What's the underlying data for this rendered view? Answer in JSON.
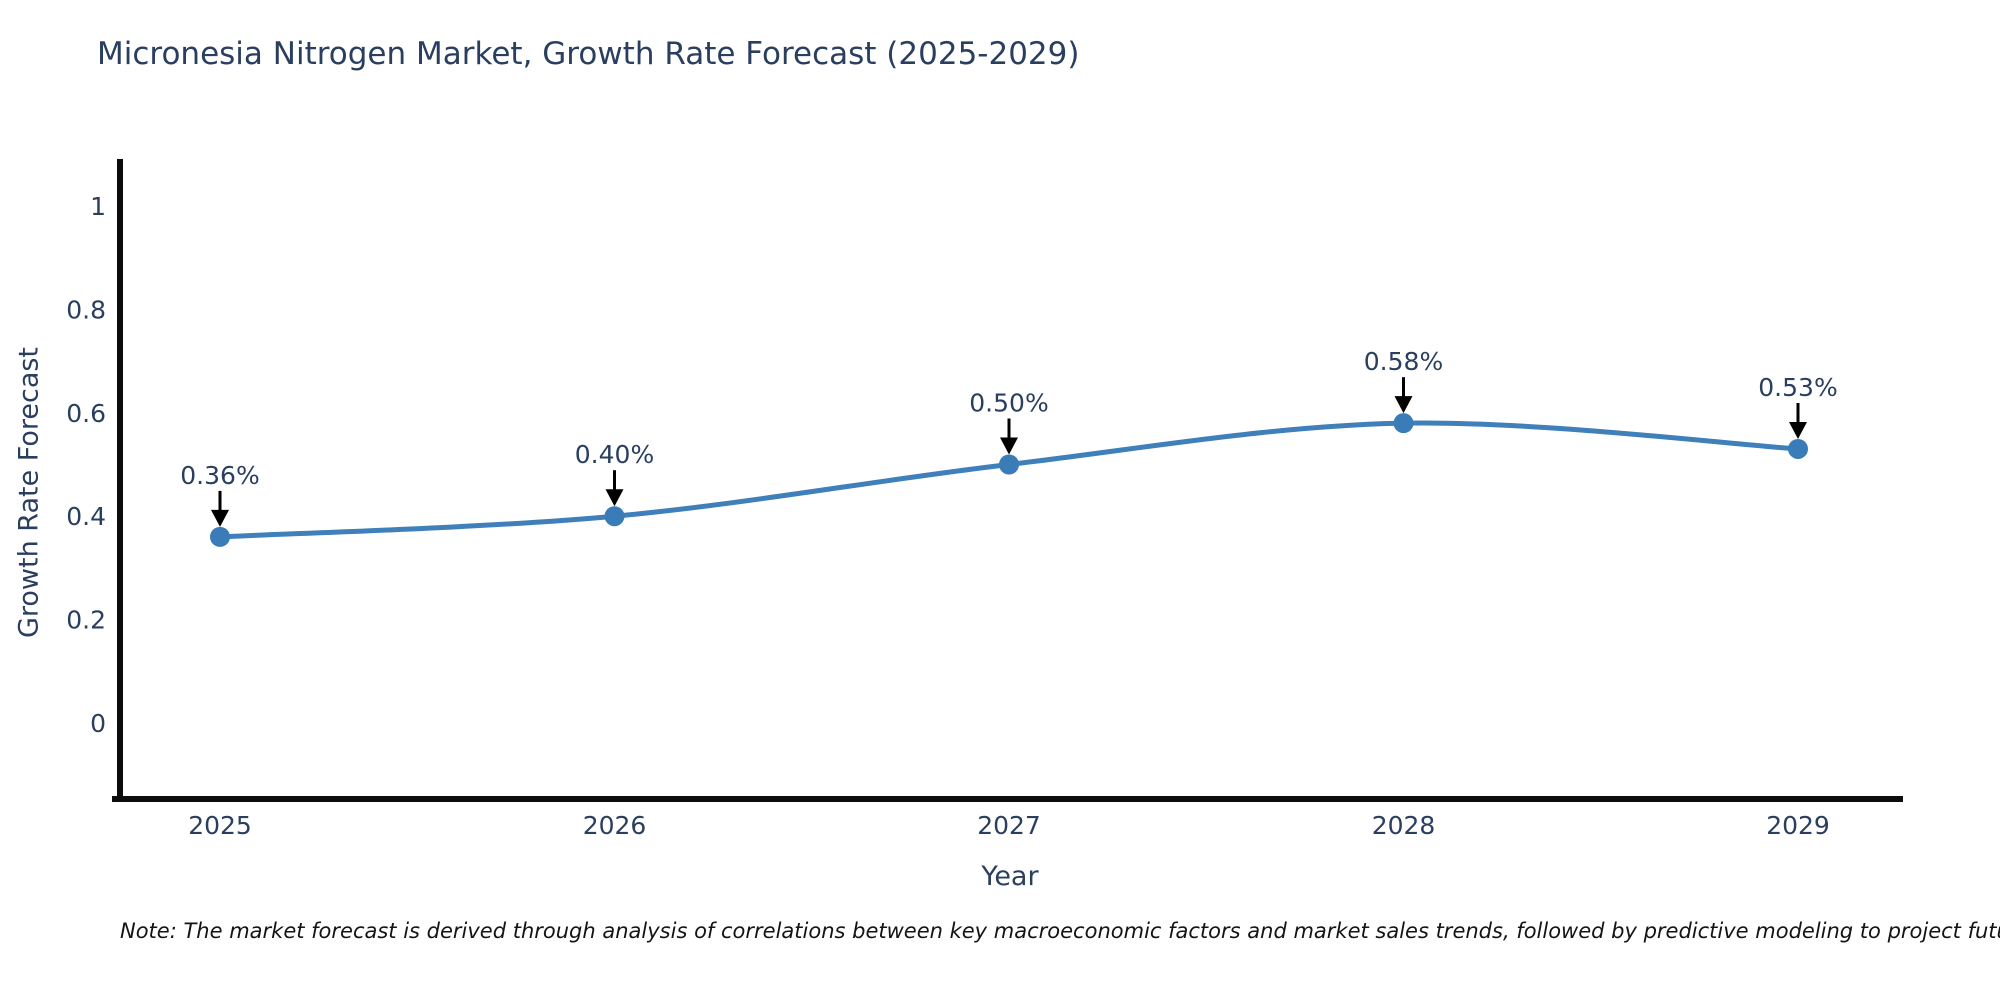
{
  "chart_data": {
    "type": "line",
    "title": "Micronesia Nitrogen Market, Growth Rate Forecast (2025-2029)",
    "xlabel": "Year",
    "ylabel": "Growth Rate Forecast",
    "categories": [
      "2025",
      "2026",
      "2027",
      "2028",
      "2029"
    ],
    "series": [
      {
        "name": "Growth Rate Forecast",
        "values": [
          0.36,
          0.4,
          0.5,
          0.58,
          0.53
        ]
      }
    ],
    "point_labels": [
      "0.36%",
      "0.40%",
      "0.50%",
      "0.58%",
      "0.53%"
    ],
    "ytick_values": [
      0,
      0.2,
      0.4,
      0.6,
      0.8,
      1
    ],
    "ytick_labels": [
      "0",
      "0.2",
      "0.4",
      "0.6",
      "0.8",
      "1"
    ],
    "ylim": [
      -0.149,
      1.091
    ],
    "grid": false,
    "legend_position": "none",
    "line_shape": "spline",
    "colors": {
      "line": "#3f7fba",
      "marker": "#3a7cb8",
      "axis": "#0d0d0d",
      "tick_text": "#2a3f5f",
      "annotation_text": "#2a3f5f",
      "annotation_arrow": "#000000",
      "background": "#ffffff"
    },
    "note": "Note: The market forecast is derived through analysis of correlations between key macroeconomic factors and market sales trends, followed by predictive modeling to project future sales"
  }
}
